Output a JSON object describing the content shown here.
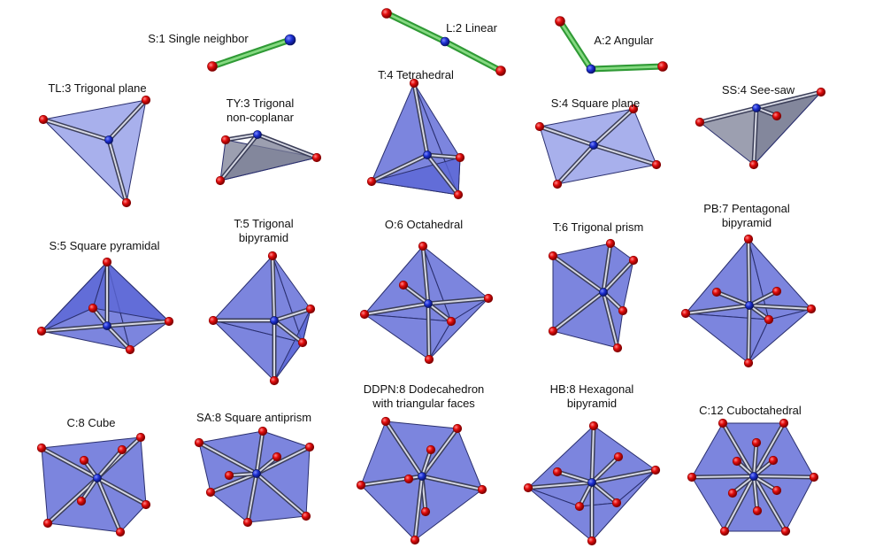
{
  "colors": {
    "face": "#5b67d6",
    "face_light": "#8b96e6",
    "face_grey": "#7b7f96",
    "edge": "#2a2f6e",
    "bond_dark": "#3b3e58",
    "bond_light": "#e6e8f2",
    "bond_green": "#2f9a35",
    "bond_green_light": "#8fe08a",
    "ligand": "#e30d0d",
    "ligand_dark": "#8a0000",
    "center": "#1c2fd1"
  },
  "geometries": [
    {
      "id": "s1",
      "label_lines": [
        "S:1 Single neighbor"
      ],
      "style": "linear"
    },
    {
      "id": "l2",
      "label_lines": [
        "L:2 Linear"
      ],
      "style": "linear"
    },
    {
      "id": "a2",
      "label_lines": [
        "A:2 Angular"
      ],
      "style": "linear"
    },
    {
      "id": "tl3",
      "label_lines": [
        "TL:3 Trigonal plane"
      ],
      "style": "light"
    },
    {
      "id": "ty3",
      "label_lines": [
        "TY:3 Trigonal",
        "non-coplanar"
      ],
      "style": "grey"
    },
    {
      "id": "t4",
      "label_lines": [
        "T:4 Tetrahedral"
      ],
      "style": "solid"
    },
    {
      "id": "s4",
      "label_lines": [
        "S:4 Square plane"
      ],
      "style": "light"
    },
    {
      "id": "ss4",
      "label_lines": [
        "SS:4 See-saw"
      ],
      "style": "grey"
    },
    {
      "id": "s5",
      "label_lines": [
        "S:5 Square pyramidal"
      ],
      "style": "solid"
    },
    {
      "id": "t5",
      "label_lines": [
        "T:5 Trigonal",
        "bipyramid"
      ],
      "style": "solid"
    },
    {
      "id": "o6",
      "label_lines": [
        "O:6 Octahedral"
      ],
      "style": "solid"
    },
    {
      "id": "t6",
      "label_lines": [
        "T:6 Trigonal prism"
      ],
      "style": "solid"
    },
    {
      "id": "pb7",
      "label_lines": [
        "PB:7 Pentagonal",
        "bipyramid"
      ],
      "style": "solid"
    },
    {
      "id": "c8",
      "label_lines": [
        "C:8 Cube"
      ],
      "style": "solid"
    },
    {
      "id": "sa8",
      "label_lines": [
        "SA:8 Square antiprism"
      ],
      "style": "solid"
    },
    {
      "id": "ddpn8",
      "label_lines": [
        "DDPN:8 Dodecahedron",
        "with triangular faces"
      ],
      "style": "solid"
    },
    {
      "id": "hb8",
      "label_lines": [
        "HB:8 Hexagonal",
        "bipyramid"
      ],
      "style": "solid"
    },
    {
      "id": "c12",
      "label_lines": [
        "C:12 Cuboctahedral"
      ],
      "style": "solid"
    }
  ]
}
